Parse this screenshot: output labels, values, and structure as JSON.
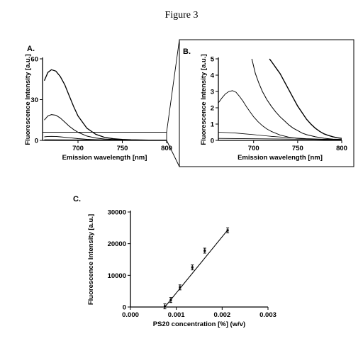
{
  "figure_title": "Figure 3",
  "chart_data": [
    {
      "id": "A",
      "panel_label": "A.",
      "type": "line",
      "xlabel": "Emission wavelength [nm]",
      "ylabel": "Fluorescence Intensity [a.u.]",
      "xlim": [
        660,
        800
      ],
      "ylim": [
        0,
        60
      ],
      "xticks": [
        700,
        750,
        800
      ],
      "yticks": [
        0,
        30,
        60
      ],
      "inset_box": {
        "x": [
          660,
          800
        ],
        "y": [
          0,
          6
        ]
      },
      "series": [
        {
          "x": [
            662,
            666,
            670,
            675,
            680,
            685,
            690,
            695,
            700,
            710,
            720,
            730,
            740,
            750,
            760,
            780,
            800
          ],
          "y": [
            44,
            50,
            52,
            51,
            47,
            41,
            33,
            25,
            18,
            9,
            4.5,
            2.2,
            1.2,
            0.7,
            0.4,
            0.2,
            0.1
          ],
          "width": 1.3
        },
        {
          "x": [
            662,
            666,
            670,
            675,
            680,
            685,
            690,
            695,
            700,
            710,
            720,
            730,
            740,
            760,
            780,
            800
          ],
          "y": [
            15,
            18,
            19,
            18.5,
            16.5,
            13.5,
            10.5,
            8,
            6,
            3.2,
            1.8,
            1,
            0.6,
            0.3,
            0.2,
            0.1
          ],
          "width": 1
        },
        {
          "x": [
            662,
            666,
            670,
            675,
            680,
            690,
            700,
            710,
            720,
            740,
            760,
            780,
            800
          ],
          "y": [
            2.6,
            2.9,
            3.0,
            2.9,
            2.6,
            2.0,
            1.3,
            0.8,
            0.5,
            0.2,
            0.1,
            0.05,
            0.02
          ],
          "width": 0.9
        },
        {
          "x": [
            662,
            680,
            700,
            720,
            740,
            760,
            780,
            800
          ],
          "y": [
            0.5,
            0.45,
            0.35,
            0.25,
            0.15,
            0.1,
            0.05,
            0.02
          ],
          "width": 0.8
        }
      ]
    },
    {
      "id": "B",
      "panel_label": "B.",
      "type": "line",
      "xlabel": "Emission wavelength [nm]",
      "ylabel": "Fluorescence Intensity [a.u.]",
      "xlim": [
        660,
        800
      ],
      "ylim": [
        0,
        5
      ],
      "xticks": [
        700,
        750,
        800
      ],
      "yticks": [
        0,
        1,
        2,
        3,
        4,
        5
      ],
      "series": [
        {
          "x": [
            718,
            722,
            726,
            730,
            735,
            740,
            745,
            750,
            755,
            760,
            765,
            770,
            775,
            780,
            785,
            790,
            795,
            800
          ],
          "y": [
            5,
            4.7,
            4.4,
            4.1,
            3.6,
            3.1,
            2.6,
            2.1,
            1.7,
            1.3,
            1.0,
            0.75,
            0.55,
            0.4,
            0.3,
            0.22,
            0.16,
            0.12
          ],
          "width": 1.4
        },
        {
          "x": [
            698,
            702,
            706,
            710,
            715,
            720,
            725,
            730,
            735,
            740,
            745,
            750,
            755,
            760,
            770,
            780,
            790,
            800
          ],
          "y": [
            5,
            4.1,
            3.5,
            3.0,
            2.5,
            2.1,
            1.75,
            1.45,
            1.2,
            0.95,
            0.75,
            0.6,
            0.45,
            0.35,
            0.22,
            0.13,
            0.08,
            0.05
          ],
          "width": 1
        },
        {
          "x": [
            660,
            664,
            668,
            672,
            676,
            680,
            684,
            688,
            692,
            696,
            700,
            705,
            710,
            715,
            720,
            730,
            740,
            750,
            760,
            780,
            800
          ],
          "y": [
            2.3,
            2.6,
            2.85,
            3.0,
            3.05,
            2.95,
            2.7,
            2.4,
            2.05,
            1.75,
            1.45,
            1.15,
            0.9,
            0.7,
            0.55,
            0.33,
            0.2,
            0.12,
            0.08,
            0.04,
            0.02
          ],
          "width": 0.9
        },
        {
          "x": [
            660,
            670,
            680,
            690,
            700,
            710,
            720,
            740,
            760,
            780,
            800
          ],
          "y": [
            0.5,
            0.48,
            0.45,
            0.4,
            0.35,
            0.3,
            0.25,
            0.17,
            0.11,
            0.07,
            0.05
          ],
          "width": 0.8
        },
        {
          "x": [
            660,
            700,
            740,
            780,
            800
          ],
          "y": [
            0.12,
            0.1,
            0.08,
            0.06,
            0.05
          ],
          "width": 0.8
        }
      ]
    },
    {
      "id": "C",
      "panel_label": "C.",
      "type": "scatter",
      "xlabel": "PS20 concentration [%] (w/v)",
      "ylabel": "Fluorescence Intensity [a.u.]",
      "xlim": [
        0,
        0.003
      ],
      "ylim": [
        0,
        30000
      ],
      "xticks": [
        "0.000",
        "0.001",
        "0.002",
        "0.003"
      ],
      "yticks": [
        0,
        10000,
        20000,
        30000
      ],
      "points": {
        "x": [
          0.00075,
          0.00088,
          0.00108,
          0.00135,
          0.00162,
          0.00212
        ],
        "y": [
          200,
          2200,
          6200,
          12500,
          17800,
          24200
        ]
      },
      "fit_line": {
        "x": [
          0.00075,
          0.00212
        ],
        "y": [
          0,
          24300
        ]
      }
    }
  ]
}
